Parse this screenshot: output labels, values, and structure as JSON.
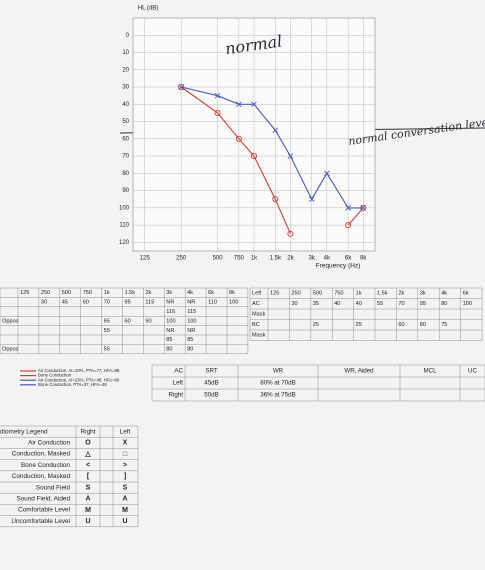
{
  "chart_data": {
    "type": "line",
    "title": "HL (dB)",
    "x_label": "Frequency (Hz)",
    "log_x": true,
    "grid": true,
    "y_inverted": true,
    "x": [
      125,
      250,
      500,
      750,
      1000,
      1500,
      2000,
      3000,
      4000,
      6000,
      8000
    ],
    "xlim": [
      100,
      10000
    ],
    "xticks": [
      125,
      250,
      500,
      750,
      {
        "value": 1000,
        "label": "1k"
      },
      {
        "value": 1500,
        "label": "1.5k"
      },
      {
        "value": 2000,
        "label": "2k"
      },
      {
        "value": 3000,
        "label": "3k"
      },
      {
        "value": 4000,
        "label": "4k"
      },
      {
        "value": 6000,
        "label": "6k"
      },
      {
        "value": 8000,
        "label": "8k"
      }
    ],
    "ylim": [
      -10,
      125
    ],
    "yticks": [
      0,
      10,
      20,
      30,
      40,
      50,
      60,
      70,
      80,
      90,
      100,
      110,
      120
    ],
    "series": [
      {
        "name": "Air Conduction, AI=10%, PTA=77, HFA=88",
        "color": "#d0403a",
        "marker": "circle",
        "values": [
          null,
          30,
          45,
          60,
          70,
          95,
          115,
          null,
          null,
          110,
          100
        ]
      },
      {
        "name": "Air Conduction, AI=23%, PTA=48, HFA=80",
        "color": "#4a5bb0",
        "marker": "x",
        "values": [
          null,
          30,
          35,
          40,
          40,
          55,
          70,
          95,
          80,
          100,
          100
        ]
      }
    ],
    "bone_notes": [
      {
        "text": "Bone Conduction",
        "color": "#d0403a"
      },
      {
        "text": "Bone Conduction, PTA=37, HFA=48",
        "color": "#4a5bb0"
      }
    ],
    "annotations": [
      "normal",
      "normal conversation level"
    ]
  },
  "right_table": {
    "header": [
      null,
      "125",
      "250",
      "500",
      "750",
      "1k",
      "1.5k",
      "2k",
      "3k",
      "4k",
      "6k",
      "8k"
    ],
    "rows": [
      [
        null,
        null,
        "30",
        "45",
        "60",
        "70",
        "95",
        "115",
        "NR",
        "NR",
        "110",
        "100"
      ],
      [
        null,
        null,
        null,
        null,
        null,
        null,
        null,
        null,
        "115",
        "115",
        null,
        null
      ],
      [
        "Oppos",
        null,
        null,
        null,
        null,
        "65",
        "60",
        "90",
        "100",
        "100",
        null,
        null
      ],
      [
        null,
        null,
        null,
        null,
        null,
        "55",
        null,
        null,
        "NR",
        "NR",
        null,
        null
      ],
      [
        null,
        null,
        null,
        null,
        null,
        null,
        null,
        null,
        "85",
        "85",
        null,
        null
      ],
      [
        "Oppos",
        null,
        null,
        null,
        null,
        "55",
        null,
        null,
        "80",
        "80",
        null,
        null
      ]
    ]
  },
  "left_table": {
    "header": [
      "Left",
      "125",
      "250",
      "500",
      "750",
      "1k",
      "1.5k",
      "2k",
      "3k",
      "4k",
      "6k"
    ],
    "rows": [
      [
        "AC",
        null,
        "30",
        "35",
        "40",
        "40",
        "55",
        "70",
        "95",
        "80",
        "100"
      ],
      [
        "Mask",
        null,
        null,
        null,
        null,
        null,
        null,
        null,
        null,
        null,
        null
      ],
      [
        "BC",
        null,
        null,
        "25",
        null,
        "25",
        null,
        "60",
        "80",
        "75",
        null
      ],
      [
        "Mask",
        null,
        null,
        null,
        null,
        null,
        null,
        null,
        null,
        null,
        null
      ]
    ]
  },
  "speech_table": {
    "header": [
      "AC",
      "SRT",
      "WR",
      "WR, Aided",
      "MCL",
      "UC"
    ],
    "rows": [
      [
        "Left",
        "45dB",
        "80% at 70dB",
        null,
        null,
        null
      ],
      [
        "Right",
        "50dB",
        "36% at 75dB",
        null,
        null,
        null
      ]
    ]
  },
  "legend_table": {
    "header": [
      "diometry Legend",
      "Right",
      "Left"
    ],
    "rows": [
      [
        "Air Conduction",
        "O",
        "X"
      ],
      [
        "Conduction, Masked",
        "△",
        "□"
      ],
      [
        "Bone Conduction",
        "<",
        ">"
      ],
      [
        "Conduction, Masked",
        "[",
        "]"
      ],
      [
        "Sound Field",
        "S",
        "S"
      ],
      [
        "Sound Field, Aided",
        "A",
        "A"
      ],
      [
        "Comfortable Level",
        "M",
        "M"
      ],
      [
        "Uncomfortable Level",
        "U",
        "U"
      ]
    ]
  }
}
